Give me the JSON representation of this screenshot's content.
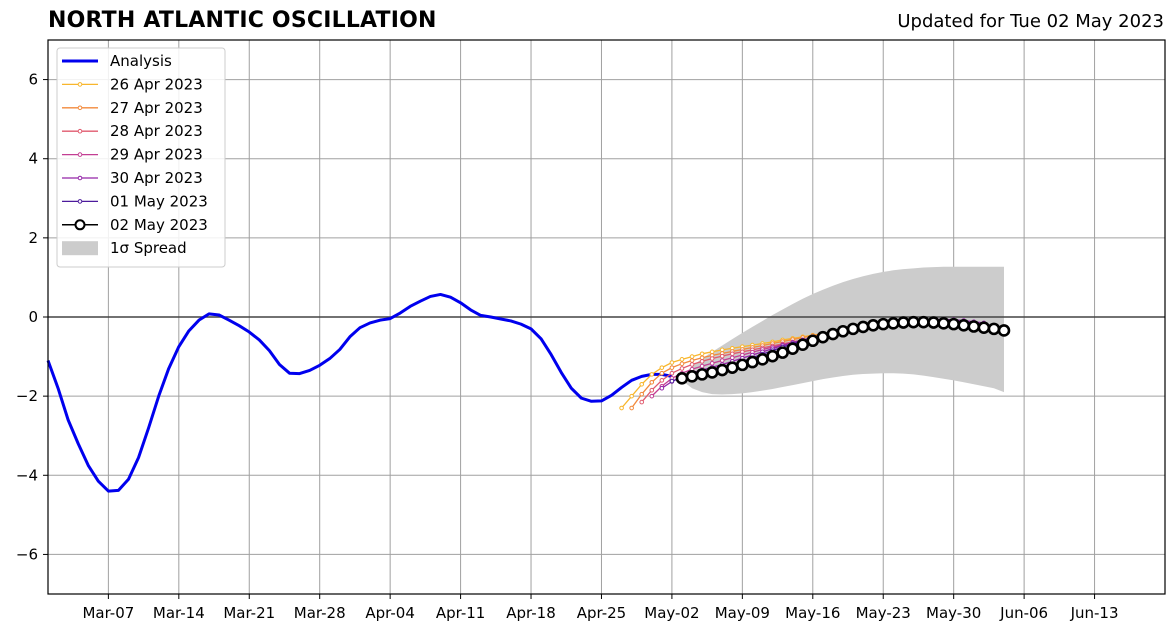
{
  "title": "NORTH ATLANTIC OSCILLATION",
  "subtitle": "Updated for Tue 02 May 2023",
  "chart_data": {
    "type": "line",
    "title": "NORTH ATLANTIC OSCILLATION",
    "subtitle": "Updated for Tue 02 May 2023",
    "xlabel": "",
    "ylabel": "",
    "x_start": "2023-03-01",
    "x_end": "2023-06-20",
    "ylim": [
      -7,
      7
    ],
    "yticks": [
      -6,
      -4,
      -2,
      0,
      2,
      4,
      6
    ],
    "ytick_labels": [
      "−6",
      "−4",
      "−2",
      "0",
      "2",
      "4",
      "6"
    ],
    "xticks": [
      {
        "date": "2023-03-07",
        "label": "Mar-07"
      },
      {
        "date": "2023-03-14",
        "label": "Mar-14"
      },
      {
        "date": "2023-03-21",
        "label": "Mar-21"
      },
      {
        "date": "2023-03-28",
        "label": "Mar-28"
      },
      {
        "date": "2023-04-04",
        "label": "Apr-04"
      },
      {
        "date": "2023-04-11",
        "label": "Apr-11"
      },
      {
        "date": "2023-04-18",
        "label": "Apr-18"
      },
      {
        "date": "2023-04-25",
        "label": "Apr-25"
      },
      {
        "date": "2023-05-02",
        "label": "May-02"
      },
      {
        "date": "2023-05-09",
        "label": "May-09"
      },
      {
        "date": "2023-05-16",
        "label": "May-16"
      },
      {
        "date": "2023-05-23",
        "label": "May-23"
      },
      {
        "date": "2023-05-30",
        "label": "May-30"
      },
      {
        "date": "2023-06-06",
        "label": "Jun-06"
      },
      {
        "date": "2023-06-13",
        "label": "Jun-13"
      }
    ],
    "grid": true,
    "zero_line": true,
    "legend_position": "top-left",
    "analysis": {
      "name": "Analysis",
      "color": "#0000ee",
      "x": [
        "2023-03-01",
        "2023-03-02",
        "2023-03-03",
        "2023-03-04",
        "2023-03-05",
        "2023-03-06",
        "2023-03-07",
        "2023-03-08",
        "2023-03-09",
        "2023-03-10",
        "2023-03-11",
        "2023-03-12",
        "2023-03-13",
        "2023-03-14",
        "2023-03-15",
        "2023-03-16",
        "2023-03-17",
        "2023-03-18",
        "2023-03-19",
        "2023-03-20",
        "2023-03-21",
        "2023-03-22",
        "2023-03-23",
        "2023-03-24",
        "2023-03-25",
        "2023-03-26",
        "2023-03-27",
        "2023-03-28",
        "2023-03-29",
        "2023-03-30",
        "2023-03-31",
        "2023-04-01",
        "2023-04-02",
        "2023-04-03",
        "2023-04-04",
        "2023-04-05",
        "2023-04-06",
        "2023-04-07",
        "2023-04-08",
        "2023-04-09",
        "2023-04-10",
        "2023-04-11",
        "2023-04-12",
        "2023-04-13",
        "2023-04-14",
        "2023-04-15",
        "2023-04-16",
        "2023-04-17",
        "2023-04-18",
        "2023-04-19",
        "2023-04-20",
        "2023-04-21",
        "2023-04-22",
        "2023-04-23",
        "2023-04-24",
        "2023-04-25",
        "2023-04-26",
        "2023-04-27",
        "2023-04-28",
        "2023-04-29",
        "2023-04-30",
        "2023-05-01",
        "2023-05-02"
      ],
      "y": [
        -1.1,
        -1.8,
        -2.6,
        -3.2,
        -3.75,
        -4.15,
        -4.4,
        -4.38,
        -4.1,
        -3.55,
        -2.8,
        -2.0,
        -1.3,
        -0.75,
        -0.35,
        -0.08,
        0.08,
        0.05,
        -0.08,
        -0.22,
        -0.38,
        -0.58,
        -0.85,
        -1.2,
        -1.42,
        -1.43,
        -1.35,
        -1.22,
        -1.05,
        -0.82,
        -0.5,
        -0.27,
        -0.15,
        -0.08,
        -0.04,
        0.1,
        0.27,
        0.4,
        0.52,
        0.57,
        0.5,
        0.36,
        0.18,
        0.04,
        0.0,
        -0.05,
        -0.1,
        -0.18,
        -0.3,
        -0.55,
        -0.95,
        -1.4,
        -1.8,
        -2.05,
        -2.13,
        -2.12,
        -1.98,
        -1.78,
        -1.6,
        -1.5,
        -1.45,
        -1.45,
        -1.5
      ]
    },
    "series": [
      {
        "name": "26 Apr 2023",
        "color": "#f8b62c",
        "start": "2023-04-27",
        "y": [
          -2.3,
          -2.0,
          -1.7,
          -1.45,
          -1.28,
          -1.15,
          -1.07,
          -1.0,
          -0.93,
          -0.88,
          -0.83,
          -0.79,
          -0.75,
          -0.71,
          -0.67,
          -0.63,
          -0.58,
          -0.54,
          -0.5,
          -0.46,
          -0.42,
          -0.38,
          -0.34,
          -0.3,
          -0.27,
          -0.24,
          -0.21,
          -0.19,
          -0.17,
          -0.16,
          -0.16,
          -0.17,
          -0.19,
          -0.21,
          -0.23,
          -0.25,
          -0.28
        ]
      },
      {
        "name": "27 Apr 2023",
        "color": "#f28a3c",
        "start": "2023-04-28",
        "y": [
          -2.3,
          -1.95,
          -1.65,
          -1.42,
          -1.28,
          -1.18,
          -1.1,
          -1.03,
          -0.97,
          -0.92,
          -0.87,
          -0.82,
          -0.77,
          -0.72,
          -0.67,
          -0.62,
          -0.57,
          -0.52,
          -0.47,
          -0.43,
          -0.39,
          -0.35,
          -0.31,
          -0.27,
          -0.24,
          -0.21,
          -0.19,
          -0.17,
          -0.16,
          -0.16,
          -0.17,
          -0.19,
          -0.21,
          -0.24,
          -0.27,
          -0.3
        ]
      },
      {
        "name": "28 Apr 2023",
        "color": "#e05a6e",
        "start": "2023-04-29",
        "y": [
          -2.15,
          -1.85,
          -1.6,
          -1.42,
          -1.3,
          -1.2,
          -1.12,
          -1.05,
          -0.99,
          -0.93,
          -0.88,
          -0.83,
          -0.78,
          -0.73,
          -0.68,
          -0.63,
          -0.58,
          -0.53,
          -0.48,
          -0.44,
          -0.4,
          -0.36,
          -0.32,
          -0.29,
          -0.26,
          -0.23,
          -0.2,
          -0.18,
          -0.17,
          -0.16,
          -0.17,
          -0.18,
          -0.2,
          -0.23,
          -0.26
        ]
      },
      {
        "name": "29 Apr 2023",
        "color": "#c33e93",
        "start": "2023-04-30",
        "y": [
          -2.0,
          -1.75,
          -1.55,
          -1.42,
          -1.32,
          -1.24,
          -1.17,
          -1.1,
          -1.03,
          -0.96,
          -0.89,
          -0.82,
          -0.76,
          -0.7,
          -0.64,
          -0.58,
          -0.52,
          -0.47,
          -0.42,
          -0.37,
          -0.33,
          -0.29,
          -0.25,
          -0.22,
          -0.19,
          -0.16,
          -0.14,
          -0.12,
          -0.11,
          -0.11,
          -0.12,
          -0.14,
          -0.17,
          -0.2
        ]
      },
      {
        "name": "30 Apr 2023",
        "color": "#9325a8",
        "start": "2023-05-01",
        "y": [
          -1.8,
          -1.63,
          -1.5,
          -1.41,
          -1.34,
          -1.27,
          -1.2,
          -1.12,
          -1.04,
          -0.96,
          -0.88,
          -0.8,
          -0.72,
          -0.65,
          -0.58,
          -0.51,
          -0.45,
          -0.39,
          -0.34,
          -0.29,
          -0.25,
          -0.21,
          -0.17,
          -0.14,
          -0.11,
          -0.09,
          -0.07,
          -0.06,
          -0.06,
          -0.07,
          -0.09,
          -0.12,
          -0.15
        ]
      },
      {
        "name": "01 May 2023",
        "color": "#4c1a9c",
        "start": "2023-05-02",
        "y": [
          -1.62,
          -1.54,
          -1.47,
          -1.41,
          -1.35,
          -1.28,
          -1.2,
          -1.12,
          -1.03,
          -0.94,
          -0.85,
          -0.76,
          -0.68,
          -0.6,
          -0.52,
          -0.45,
          -0.38,
          -0.32,
          -0.27,
          -0.22,
          -0.18,
          -0.15,
          -0.12,
          -0.1,
          -0.09,
          -0.09,
          -0.09,
          -0.1,
          -0.12,
          -0.14,
          -0.17,
          -0.2
        ]
      },
      {
        "name": "02 May 2023",
        "color": "#000000",
        "start": "2023-05-03",
        "y": [
          -1.55,
          -1.5,
          -1.45,
          -1.4,
          -1.34,
          -1.28,
          -1.21,
          -1.14,
          -1.07,
          -0.99,
          -0.9,
          -0.8,
          -0.7,
          -0.6,
          -0.51,
          -0.43,
          -0.36,
          -0.3,
          -0.25,
          -0.21,
          -0.18,
          -0.16,
          -0.14,
          -0.13,
          -0.13,
          -0.14,
          -0.16,
          -0.18,
          -0.21,
          -0.24,
          -0.27,
          -0.3,
          -0.34
        ]
      }
    ],
    "spread": {
      "name": "1σ Spread",
      "color": "#cccccc",
      "start": "2023-05-03",
      "upper": [
        -1.5,
        -1.25,
        -1.05,
        -0.88,
        -0.72,
        -0.56,
        -0.4,
        -0.25,
        -0.1,
        0.05,
        0.19,
        0.33,
        0.46,
        0.58,
        0.69,
        0.79,
        0.88,
        0.96,
        1.03,
        1.09,
        1.14,
        1.18,
        1.21,
        1.23,
        1.25,
        1.26,
        1.27,
        1.27,
        1.27,
        1.27,
        1.27,
        1.27,
        1.27
      ],
      "lower": [
        -1.6,
        -1.8,
        -1.9,
        -1.95,
        -1.96,
        -1.95,
        -1.93,
        -1.9,
        -1.86,
        -1.82,
        -1.77,
        -1.72,
        -1.67,
        -1.62,
        -1.57,
        -1.53,
        -1.49,
        -1.46,
        -1.44,
        -1.43,
        -1.42,
        -1.42,
        -1.43,
        -1.45,
        -1.48,
        -1.52,
        -1.56,
        -1.6,
        -1.65,
        -1.7,
        -1.75,
        -1.8,
        -1.9
      ]
    },
    "legend": [
      "Analysis",
      "26 Apr 2023",
      "27 Apr 2023",
      "28 Apr 2023",
      "29 Apr 2023",
      "30 Apr 2023",
      "01 May 2023",
      "02 May 2023",
      "1σ Spread"
    ]
  }
}
